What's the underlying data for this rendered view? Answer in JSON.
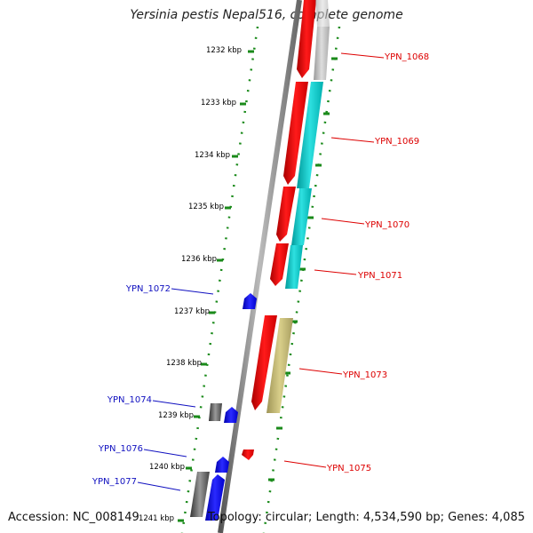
{
  "title": "Yersinia pestis Nepal516, complete genome",
  "footer": {
    "accession": "Accession: NC_008149",
    "topology": "Topology: circular; Length: 4,534,590 bp; Genes: 4,085"
  },
  "colors": {
    "background": "#ffffff",
    "plus_strand_label": "#dd0000",
    "minus_strand_label": "#1010c0",
    "tick": "#1a8a1a",
    "backbone": "#888888"
  },
  "scale_labels": [
    "1232 kbp",
    "1233 kbp",
    "1234 kbp",
    "1235 kbp",
    "1236 kbp",
    "1237 kbp",
    "1238 kbp",
    "1239 kbp",
    "1240 kbp",
    "1241 kbp"
  ],
  "gene_labels": {
    "right": [
      "YPN_1068",
      "YPN_1069",
      "YPN_1070",
      "YPN_1071",
      "YPN_1073",
      "YPN_1075"
    ],
    "left": [
      "YPN_1072",
      "YPN_1074",
      "YPN_1076",
      "YPN_1077"
    ]
  }
}
